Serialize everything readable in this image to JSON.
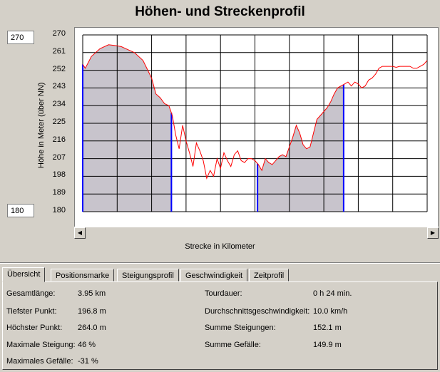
{
  "title": "Höhen- und Streckenprofil",
  "y_range": {
    "max_value": "270",
    "min_value": "180"
  },
  "ylabel": "Höhe in Meter (über NN)",
  "xlabel": "Strecke in Kilometer",
  "chart_data": {
    "type": "line",
    "title": "Höhen- und Streckenprofil",
    "xlabel": "Strecke in Kilometer",
    "ylabel": "Höhe in Meter (über NN)",
    "xlim": [
      0,
      4
    ],
    "ylim": [
      180,
      270
    ],
    "x_ticks": [
      "0",
      "0.4",
      "0.8",
      "1.2",
      "1.6",
      "2",
      "2.4",
      "2.8",
      "3.2",
      "3.6",
      "4"
    ],
    "y_ticks": [
      "270",
      "261",
      "252",
      "243",
      "234",
      "225",
      "216",
      "207",
      "198",
      "189",
      "180"
    ],
    "grid": true,
    "series": [
      {
        "color": "#ff0000",
        "x": [
          0,
          0.03,
          0.1,
          0.2,
          0.3,
          0.4,
          0.45,
          0.5,
          0.6,
          0.7,
          0.8,
          0.85,
          0.9,
          0.95,
          1.0,
          1.04,
          1.08,
          1.12,
          1.16,
          1.2,
          1.24,
          1.28,
          1.32,
          1.36,
          1.4,
          1.44,
          1.48,
          1.52,
          1.56,
          1.6,
          1.64,
          1.68,
          1.72,
          1.76,
          1.8,
          1.84,
          1.88,
          1.92,
          1.96,
          2.0,
          2.04,
          2.08,
          2.12,
          2.16,
          2.2,
          2.24,
          2.28,
          2.32,
          2.36,
          2.4,
          2.44,
          2.48,
          2.52,
          2.56,
          2.6,
          2.64,
          2.68,
          2.72,
          2.76,
          2.8,
          2.84,
          2.88,
          2.92,
          2.96,
          3.0,
          3.04,
          3.08,
          3.12,
          3.16,
          3.2,
          3.24,
          3.28,
          3.32,
          3.36,
          3.4,
          3.44,
          3.48,
          3.52,
          3.56,
          3.6,
          3.64,
          3.68,
          3.72,
          3.76,
          3.8,
          3.84,
          3.88,
          3.92,
          3.96,
          4.0
        ],
        "y": [
          255,
          253,
          259,
          263,
          265,
          264.5,
          264,
          263,
          261,
          257,
          248,
          240,
          238,
          235,
          234,
          229,
          219,
          212,
          224,
          216,
          210,
          203,
          215,
          211,
          206,
          197,
          201,
          198,
          207,
          202,
          210,
          206,
          203,
          209,
          211,
          206,
          205,
          207,
          207,
          206,
          204,
          201,
          207,
          205,
          204,
          206,
          208,
          209,
          208,
          213,
          218,
          224,
          220,
          214,
          212,
          213,
          220,
          227,
          229,
          231,
          233,
          236,
          240,
          243,
          244,
          245,
          246,
          244,
          246,
          245,
          243,
          244,
          247,
          248,
          250,
          253,
          254,
          254,
          254,
          254,
          253.5,
          254,
          254,
          254,
          254,
          253,
          253,
          254,
          255,
          257
        ]
      }
    ],
    "highlight_ranges": [
      [
        0,
        1.03
      ],
      [
        2.03,
        3.03
      ]
    ]
  },
  "tabs": [
    {
      "label": "Übersicht",
      "active": true
    },
    {
      "label": "Positionsmarke"
    },
    {
      "label": "Steigungsprofil"
    },
    {
      "label": "Geschwindigkeit"
    },
    {
      "label": "Zeitprofil"
    }
  ],
  "stats_left": [
    {
      "label": "Gesamtlänge:",
      "value": "3.95 km"
    },
    {
      "label": "Tiefster Punkt:",
      "value": "196.8 m"
    },
    {
      "label": "Höchster Punkt:",
      "value": "264.0 m"
    },
    {
      "label": "Maximale Steigung:",
      "value": "46 %"
    },
    {
      "label": "Maximales Gefälle:",
      "value": "-31 %"
    }
  ],
  "stats_right": [
    {
      "label": "Tourdauer:",
      "value": "0 h 24 min."
    },
    {
      "label": "Durchschnittsgeschwindigkeit:",
      "value": "10.0 km/h"
    },
    {
      "label": "Summe Steigungen:",
      "value": "152.1 m"
    },
    {
      "label": "Summe Gefälle:",
      "value": "149.9 m"
    }
  ],
  "colors": {
    "window_bg": "#d4d0c8",
    "profile_line": "#ff0000",
    "marker": "#0000ff",
    "fill": "#c8c4cc"
  }
}
